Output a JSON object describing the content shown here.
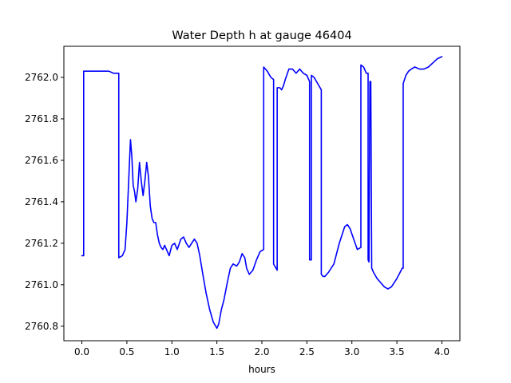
{
  "chart_data": {
    "type": "line",
    "title": "Water Depth h at gauge 46404",
    "xlabel": "hours",
    "ylabel": "",
    "xlim": [
      -0.2,
      4.2
    ],
    "ylim": [
      2760.73,
      2762.15
    ],
    "grid": false,
    "x_ticks": [
      0.0,
      0.5,
      1.0,
      1.5,
      2.0,
      2.5,
      3.0,
      3.5,
      4.0
    ],
    "x_tick_labels": [
      "0.0",
      "0.5",
      "1.0",
      "1.5",
      "2.0",
      "2.5",
      "3.0",
      "3.5",
      "4.0"
    ],
    "y_ticks": [
      2760.8,
      2761.0,
      2761.2,
      2761.4,
      2761.6,
      2761.8,
      2762.0
    ],
    "y_tick_labels": [
      "2760.8",
      "2761.0",
      "2761.2",
      "2761.4",
      "2761.6",
      "2761.8",
      "2762.0"
    ],
    "series": [
      {
        "color": "#0000ff",
        "x": [
          0.0,
          0.02,
          0.02,
          0.1,
          0.2,
          0.3,
          0.35,
          0.4,
          0.41,
          0.41,
          0.45,
          0.48,
          0.5,
          0.52,
          0.54,
          0.555,
          0.57,
          0.585,
          0.6,
          0.62,
          0.64,
          0.66,
          0.68,
          0.7,
          0.72,
          0.74,
          0.76,
          0.78,
          0.8,
          0.82,
          0.84,
          0.86,
          0.88,
          0.9,
          0.92,
          0.95,
          0.97,
          1.0,
          1.03,
          1.06,
          1.1,
          1.13,
          1.16,
          1.19,
          1.22,
          1.25,
          1.28,
          1.31,
          1.34,
          1.38,
          1.42,
          1.46,
          1.5,
          1.52,
          1.55,
          1.58,
          1.62,
          1.65,
          1.68,
          1.72,
          1.75,
          1.78,
          1.81,
          1.83,
          1.86,
          1.9,
          1.94,
          1.98,
          2.02,
          2.02,
          2.06,
          2.1,
          2.13,
          2.13,
          2.17,
          2.17,
          2.2,
          2.22,
          2.24,
          2.26,
          2.3,
          2.34,
          2.38,
          2.42,
          2.46,
          2.5,
          2.53,
          2.53,
          2.55,
          2.55,
          2.58,
          2.62,
          2.66,
          2.66,
          2.68,
          2.7,
          2.74,
          2.8,
          2.86,
          2.92,
          2.95,
          2.98,
          3.02,
          3.06,
          3.1,
          3.1,
          3.13,
          3.16,
          3.18,
          3.18,
          3.19,
          3.2,
          3.21,
          3.22,
          3.24,
          3.28,
          3.32,
          3.36,
          3.4,
          3.44,
          3.5,
          3.56,
          3.57,
          3.57,
          3.6,
          3.63,
          3.66,
          3.7,
          3.75,
          3.8,
          3.85,
          3.9,
          3.95,
          4.0
        ],
        "y": [
          2761.14,
          2761.14,
          2762.03,
          2762.03,
          2762.03,
          2762.03,
          2762.02,
          2762.02,
          2762.02,
          2761.13,
          2761.14,
          2761.17,
          2761.3,
          2761.5,
          2761.7,
          2761.62,
          2761.48,
          2761.45,
          2761.4,
          2761.46,
          2761.59,
          2761.5,
          2761.43,
          2761.5,
          2761.59,
          2761.52,
          2761.38,
          2761.32,
          2761.3,
          2761.3,
          2761.24,
          2761.2,
          2761.18,
          2761.17,
          2761.19,
          2761.16,
          2761.14,
          2761.19,
          2761.2,
          2761.17,
          2761.22,
          2761.23,
          2761.2,
          2761.18,
          2761.2,
          2761.22,
          2761.2,
          2761.14,
          2761.06,
          2760.96,
          2760.88,
          2760.82,
          2760.79,
          2760.81,
          2760.88,
          2760.93,
          2761.02,
          2761.08,
          2761.1,
          2761.09,
          2761.11,
          2761.15,
          2761.13,
          2761.08,
          2761.05,
          2761.07,
          2761.12,
          2761.16,
          2761.17,
          2762.05,
          2762.03,
          2762.0,
          2761.99,
          2761.1,
          2761.07,
          2761.95,
          2761.95,
          2761.94,
          2761.96,
          2761.99,
          2762.04,
          2762.04,
          2762.02,
          2762.04,
          2762.02,
          2762.01,
          2761.98,
          2761.12,
          2761.12,
          2762.01,
          2762.0,
          2761.97,
          2761.94,
          2761.05,
          2761.04,
          2761.04,
          2761.06,
          2761.1,
          2761.2,
          2761.28,
          2761.29,
          2761.27,
          2761.22,
          2761.17,
          2761.18,
          2762.06,
          2762.05,
          2762.02,
          2762.02,
          2761.12,
          2761.11,
          2761.98,
          2761.98,
          2761.08,
          2761.06,
          2761.03,
          2761.01,
          2760.99,
          2760.98,
          2760.99,
          2761.03,
          2761.08,
          2761.08,
          2761.97,
          2762.01,
          2762.03,
          2762.04,
          2762.05,
          2762.04,
          2762.04,
          2762.05,
          2762.07,
          2762.09,
          2762.1
        ]
      }
    ]
  }
}
